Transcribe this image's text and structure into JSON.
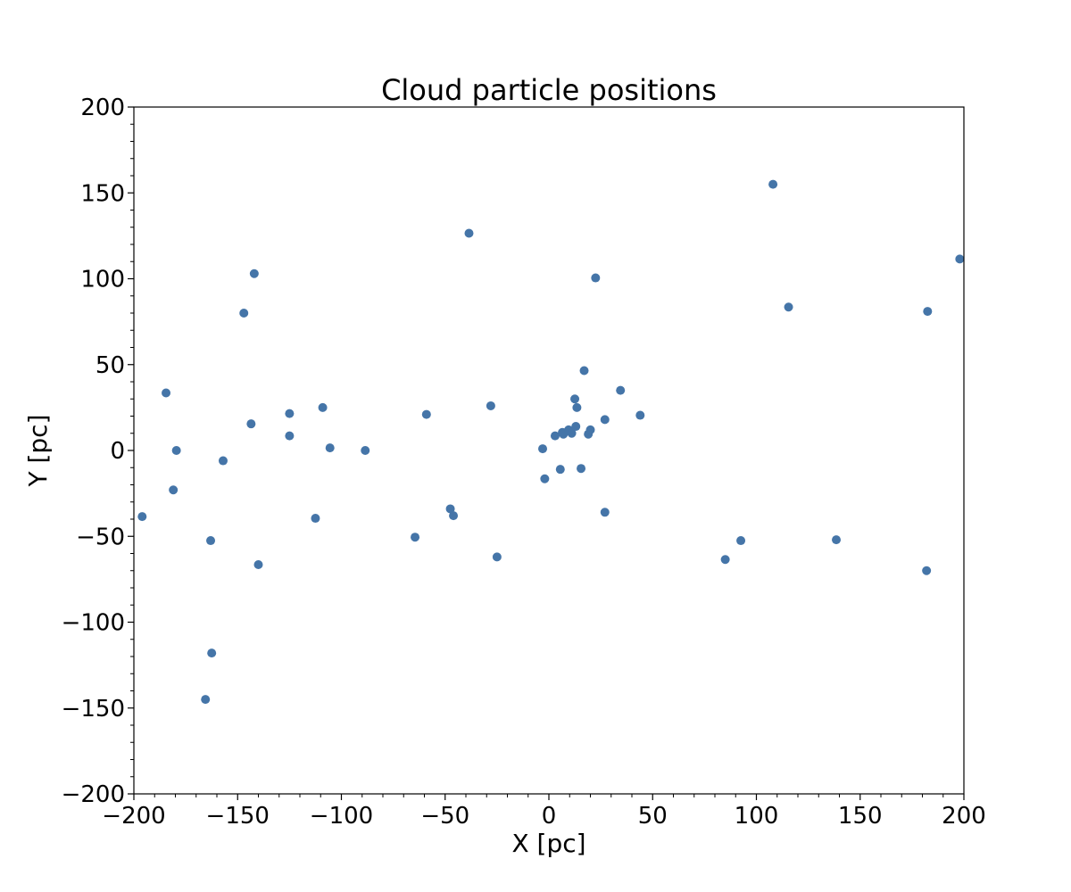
{
  "chart_data": {
    "type": "scatter",
    "title": "Cloud particle positions",
    "xlabel": "X [pc]",
    "ylabel": "Y [pc]",
    "xlim": [
      -200,
      200
    ],
    "ylim": [
      -200,
      200
    ],
    "xticks": [
      -200,
      -150,
      -100,
      -50,
      0,
      50,
      100,
      150,
      200
    ],
    "yticks": [
      -200,
      -150,
      -100,
      -50,
      0,
      50,
      100,
      150,
      200
    ],
    "xtick_labels": [
      "−200",
      "−150",
      "−100",
      "−50",
      "0",
      "50",
      "100",
      "150",
      "200"
    ],
    "ytick_labels": [
      "−200",
      "−150",
      "−100",
      "−50",
      "0",
      "50",
      "100",
      "150",
      "200"
    ],
    "grid": false,
    "marker_color": "#4575a8",
    "points": [
      {
        "x": -196,
        "y": -38.5
      },
      {
        "x": -184.5,
        "y": 33.5
      },
      {
        "x": -181,
        "y": -23
      },
      {
        "x": -179.5,
        "y": 0
      },
      {
        "x": -165.5,
        "y": -145
      },
      {
        "x": -163,
        "y": -52.5
      },
      {
        "x": -162.5,
        "y": -118
      },
      {
        "x": -157,
        "y": -6
      },
      {
        "x": -147,
        "y": 80
      },
      {
        "x": -143.5,
        "y": 15.5
      },
      {
        "x": -142,
        "y": 103
      },
      {
        "x": -140,
        "y": -66.5
      },
      {
        "x": -125,
        "y": 21.5
      },
      {
        "x": -125,
        "y": 8.5
      },
      {
        "x": -112.5,
        "y": -39.5
      },
      {
        "x": -109,
        "y": 25
      },
      {
        "x": -105.5,
        "y": 1.5
      },
      {
        "x": -88.5,
        "y": 0
      },
      {
        "x": -64.5,
        "y": -50.5
      },
      {
        "x": -59,
        "y": 21
      },
      {
        "x": -47.5,
        "y": -34
      },
      {
        "x": -46,
        "y": -38
      },
      {
        "x": -38.5,
        "y": 126.5
      },
      {
        "x": -28,
        "y": 26
      },
      {
        "x": -25,
        "y": -62
      },
      {
        "x": -3,
        "y": 1
      },
      {
        "x": -2,
        "y": -16.5
      },
      {
        "x": 3,
        "y": 8.5
      },
      {
        "x": 5.5,
        "y": -11
      },
      {
        "x": 6.5,
        "y": 10.5
      },
      {
        "x": 7,
        "y": 9.5
      },
      {
        "x": 9.5,
        "y": 12
      },
      {
        "x": 11,
        "y": 10
      },
      {
        "x": 12.5,
        "y": 30
      },
      {
        "x": 13,
        "y": 14
      },
      {
        "x": 13.5,
        "y": 25
      },
      {
        "x": 15.5,
        "y": -10.5
      },
      {
        "x": 17,
        "y": 46.5
      },
      {
        "x": 19,
        "y": 9.5
      },
      {
        "x": 20,
        "y": 12
      },
      {
        "x": 22.5,
        "y": 100.5
      },
      {
        "x": 27,
        "y": 18
      },
      {
        "x": 27,
        "y": -36
      },
      {
        "x": 34.5,
        "y": 35
      },
      {
        "x": 44,
        "y": 20.5
      },
      {
        "x": 85,
        "y": -63.5
      },
      {
        "x": 92.5,
        "y": -52.5
      },
      {
        "x": 108,
        "y": 155
      },
      {
        "x": 115.5,
        "y": 83.5
      },
      {
        "x": 138.5,
        "y": -52
      },
      {
        "x": 182,
        "y": -70
      },
      {
        "x": 182.5,
        "y": 81
      },
      {
        "x": 198,
        "y": 111.5
      }
    ]
  }
}
